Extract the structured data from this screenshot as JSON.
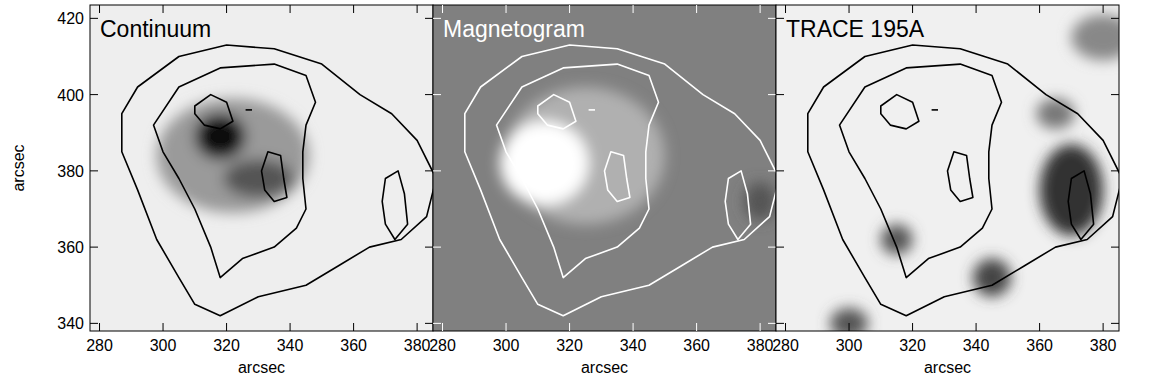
{
  "chart_data": [
    {
      "type": "image",
      "title": "Continuum",
      "color": "#000000",
      "background": "#eeeeee",
      "xlabel": "arcsec",
      "ylabel": "arcsec",
      "tick_labels": true,
      "xlim": [
        277,
        385
      ],
      "ylim": [
        338,
        423.5
      ],
      "xticks": [
        280,
        300,
        320,
        340,
        360,
        380
      ],
      "yticks": [
        340,
        360,
        380,
        400,
        420
      ],
      "features": [
        {
          "x": 322,
          "y": 384,
          "rx": 24,
          "ry": 15,
          "color": "#9a9a9a"
        },
        {
          "x": 330,
          "y": 378,
          "rx": 11,
          "ry": 5,
          "color": "#555555"
        },
        {
          "x": 318,
          "y": 389,
          "rx": 8,
          "ry": 6,
          "color": "#111111"
        }
      ],
      "contours": [
        {
          "x": [
            287,
            292,
            305,
            320,
            335,
            350,
            362,
            372,
            380,
            386,
            383,
            375,
            365,
            355,
            345,
            330,
            318,
            310,
            305,
            298,
            292,
            287
          ],
          "y": [
            395,
            402,
            410,
            413,
            412,
            408,
            400,
            395,
            388,
            378,
            368,
            362,
            360,
            355,
            350,
            347,
            342,
            345,
            352,
            362,
            375,
            385
          ]
        },
        {
          "x": [
            297,
            305,
            318,
            335,
            345,
            348,
            345,
            344,
            344,
            345,
            342,
            335,
            325,
            318,
            315,
            310,
            305,
            300
          ],
          "y": [
            392,
            402,
            407,
            408,
            405,
            398,
            392,
            385,
            378,
            370,
            365,
            360,
            357,
            352,
            360,
            370,
            378,
            385
          ]
        },
        {
          "x": [
            310,
            315,
            320,
            322,
            318,
            313,
            310
          ],
          "y": [
            397,
            400,
            398,
            393,
            391,
            392,
            395
          ]
        },
        {
          "x": [
            326,
            328
          ],
          "y": [
            396,
            396
          ]
        },
        {
          "x": [
            333,
            337,
            338,
            339,
            335,
            332,
            331
          ],
          "y": [
            385,
            384,
            378,
            373,
            372,
            375,
            380
          ]
        },
        {
          "x": [
            370,
            374,
            376,
            377,
            373,
            370,
            369
          ],
          "y": [
            378,
            380,
            374,
            366,
            362,
            366,
            372
          ]
        }
      ]
    },
    {
      "type": "image",
      "title": "Magnetogram",
      "color": "#ffffff",
      "background": "#808080",
      "xlabel": "arcsec",
      "tick_labels": "x",
      "xlim": [
        277,
        385
      ],
      "ylim": [
        338,
        423.5
      ],
      "xticks": [
        280,
        300,
        320,
        340,
        360,
        380
      ],
      "yticks": [
        340,
        360,
        380,
        400,
        420
      ],
      "features": [
        {
          "x": 325,
          "y": 384,
          "rx": 25,
          "ry": 18,
          "color": "#b0b0b0"
        },
        {
          "x": 312,
          "y": 382,
          "rx": 14,
          "ry": 11,
          "color": "#ffffff"
        },
        {
          "x": 380,
          "y": 372,
          "rx": 5,
          "ry": 5,
          "color": "#555555"
        }
      ],
      "contours": [
        {
          "x": [
            287,
            292,
            305,
            320,
            335,
            350,
            362,
            372,
            380,
            386,
            383,
            375,
            365,
            355,
            345,
            330,
            318,
            310,
            305,
            298,
            292,
            287
          ],
          "y": [
            395,
            402,
            410,
            413,
            412,
            408,
            400,
            395,
            388,
            378,
            368,
            362,
            360,
            355,
            350,
            347,
            342,
            345,
            352,
            362,
            375,
            385
          ]
        },
        {
          "x": [
            297,
            305,
            318,
            335,
            345,
            348,
            345,
            344,
            344,
            345,
            342,
            335,
            325,
            318,
            315,
            310,
            305,
            300
          ],
          "y": [
            392,
            402,
            407,
            408,
            405,
            398,
            392,
            385,
            378,
            370,
            365,
            360,
            357,
            352,
            360,
            370,
            378,
            385
          ]
        },
        {
          "x": [
            310,
            315,
            320,
            322,
            318,
            313,
            310
          ],
          "y": [
            397,
            400,
            398,
            393,
            391,
            392,
            395
          ]
        },
        {
          "x": [
            326,
            328
          ],
          "y": [
            396,
            396
          ]
        },
        {
          "x": [
            333,
            337,
            338,
            339,
            335,
            332,
            331
          ],
          "y": [
            385,
            384,
            378,
            373,
            372,
            375,
            380
          ]
        },
        {
          "x": [
            370,
            374,
            376,
            377,
            373,
            370,
            369
          ],
          "y": [
            378,
            380,
            374,
            366,
            362,
            366,
            372
          ]
        }
      ]
    },
    {
      "type": "image",
      "title": "TRACE 195A",
      "color": "#000000",
      "background": "#f0f0f0",
      "xlabel": "arcsec",
      "tick_labels": "x",
      "xlim": [
        277,
        385
      ],
      "ylim": [
        338,
        423.5
      ],
      "xticks": [
        280,
        300,
        320,
        340,
        360,
        380
      ],
      "yticks": [
        340,
        360,
        380,
        400,
        420
      ],
      "features": [
        {
          "x": 370,
          "y": 375,
          "rx": 10,
          "ry": 12,
          "color": "#333333"
        },
        {
          "x": 345,
          "y": 352,
          "rx": 6,
          "ry": 5,
          "color": "#444444"
        },
        {
          "x": 315,
          "y": 362,
          "rx": 5,
          "ry": 4,
          "color": "#555555"
        },
        {
          "x": 365,
          "y": 395,
          "rx": 6,
          "ry": 4,
          "color": "#777777"
        },
        {
          "x": 300,
          "y": 340,
          "rx": 6,
          "ry": 4,
          "color": "#555555"
        },
        {
          "x": 380,
          "y": 415,
          "rx": 10,
          "ry": 6,
          "color": "#888888"
        }
      ],
      "contours": [
        {
          "x": [
            287,
            292,
            305,
            320,
            335,
            350,
            362,
            372,
            380,
            386,
            383,
            375,
            365,
            355,
            345,
            330,
            318,
            310,
            305,
            298,
            292,
            287
          ],
          "y": [
            395,
            402,
            410,
            413,
            412,
            408,
            400,
            395,
            388,
            378,
            368,
            362,
            360,
            355,
            350,
            347,
            342,
            345,
            352,
            362,
            375,
            385
          ]
        },
        {
          "x": [
            297,
            305,
            318,
            335,
            345,
            348,
            345,
            344,
            344,
            345,
            342,
            335,
            325,
            318,
            315,
            310,
            305,
            300
          ],
          "y": [
            392,
            402,
            407,
            408,
            405,
            398,
            392,
            385,
            378,
            370,
            365,
            360,
            357,
            352,
            360,
            370,
            378,
            385
          ]
        },
        {
          "x": [
            310,
            315,
            320,
            322,
            318,
            313,
            310
          ],
          "y": [
            397,
            400,
            398,
            393,
            391,
            392,
            395
          ]
        },
        {
          "x": [
            326,
            328
          ],
          "y": [
            396,
            396
          ]
        },
        {
          "x": [
            333,
            337,
            338,
            339,
            335,
            332,
            331
          ],
          "y": [
            385,
            384,
            378,
            373,
            372,
            375,
            380
          ]
        },
        {
          "x": [
            370,
            374,
            376,
            377,
            373,
            370,
            369
          ],
          "y": [
            378,
            380,
            374,
            366,
            362,
            366,
            372
          ]
        }
      ]
    }
  ]
}
